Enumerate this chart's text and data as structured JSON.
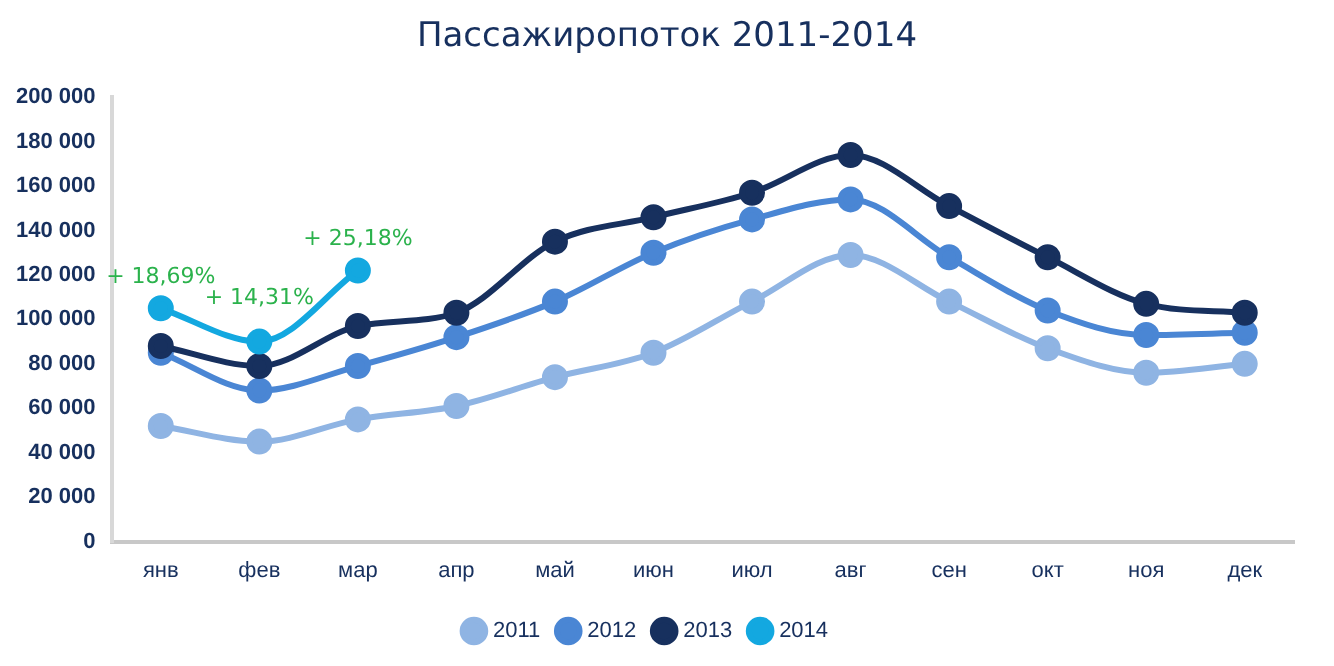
{
  "chart_data": {
    "type": "line",
    "title": "Пассажиропоток 2011-2014",
    "categories": [
      "янв",
      "фев",
      "мар",
      "апр",
      "май",
      "июн",
      "июл",
      "авг",
      "сен",
      "окт",
      "ноя",
      "дек"
    ],
    "series": [
      {
        "name": "2011",
        "color": "#8fb4e3",
        "values": [
          52000,
          45000,
          55000,
          61000,
          74000,
          85000,
          108000,
          129000,
          108000,
          87000,
          76000,
          80000
        ]
      },
      {
        "name": "2012",
        "color": "#4a86d4",
        "values": [
          85000,
          68000,
          79000,
          92000,
          108000,
          130000,
          145000,
          154000,
          128000,
          104000,
          93000,
          94000
        ]
      },
      {
        "name": "2013",
        "color": "#17305e",
        "values": [
          88000,
          79000,
          97000,
          103000,
          135000,
          146000,
          157000,
          174000,
          151000,
          128000,
          107000,
          103000
        ]
      },
      {
        "name": "2014",
        "color": "#13a8e0",
        "values": [
          105000,
          90000,
          122000,
          null,
          null,
          null,
          null,
          null,
          null,
          null,
          null,
          null
        ]
      }
    ],
    "ylim": [
      0,
      200000
    ],
    "yticks": [
      {
        "value": 0,
        "label": "0"
      },
      {
        "value": 20000,
        "label": "20 000"
      },
      {
        "value": 40000,
        "label": "40 000"
      },
      {
        "value": 60000,
        "label": "60 000"
      },
      {
        "value": 80000,
        "label": "80 000"
      },
      {
        "value": 100000,
        "label": "100 000"
      },
      {
        "value": 120000,
        "label": "120 000"
      },
      {
        "value": 140000,
        "label": "140 000"
      },
      {
        "value": 160000,
        "label": "160 000"
      },
      {
        "value": 180000,
        "label": "180 000"
      },
      {
        "value": 200000,
        "label": "200 000"
      }
    ],
    "grid": false,
    "legend": "bottom",
    "marker": "circle",
    "line_style": "solid",
    "annotations": [
      {
        "text": "+ 18,69%",
        "x": "янв",
        "y": 105000
      },
      {
        "text": "+ 14,31%",
        "x": "фев",
        "y": 90000
      },
      {
        "text": "+ 25,18%",
        "x": "мар",
        "y": 122000
      }
    ]
  }
}
